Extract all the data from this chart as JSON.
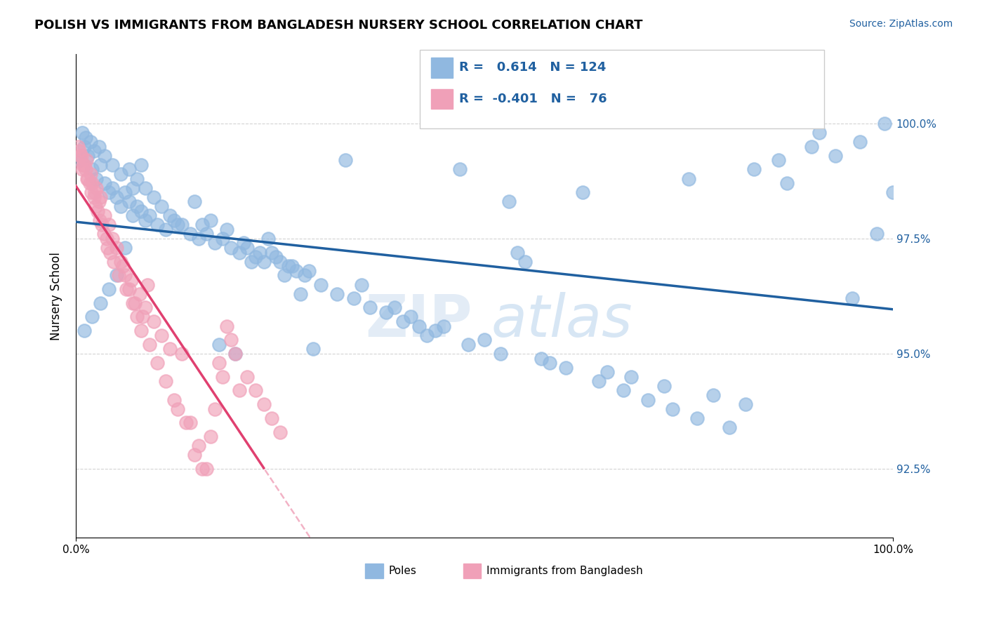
{
  "title": "POLISH VS IMMIGRANTS FROM BANGLADESH NURSERY SCHOOL CORRELATION CHART",
  "source": "Source: ZipAtlas.com",
  "ylabel": "Nursery School",
  "x_tick_labels": [
    "0.0%",
    "100.0%"
  ],
  "y_tick_values": [
    92.5,
    95.0,
    97.5,
    100.0
  ],
  "x_range": [
    0.0,
    100.0
  ],
  "y_range": [
    91.0,
    101.5
  ],
  "legend_blue_label": "Poles",
  "legend_pink_label": "Immigrants from Bangladesh",
  "r_blue": 0.614,
  "n_blue": 124,
  "r_pink": -0.401,
  "n_pink": 76,
  "blue_color": "#90b8e0",
  "pink_color": "#f0a0b8",
  "blue_line_color": "#2060a0",
  "pink_line_color": "#e04070",
  "blue_scatter_x": [
    0.5,
    1.0,
    1.5,
    2.0,
    2.5,
    3.0,
    3.5,
    4.0,
    4.5,
    5.0,
    5.5,
    6.0,
    6.5,
    7.0,
    7.5,
    8.0,
    8.5,
    9.0,
    10.0,
    11.0,
    12.0,
    13.0,
    14.0,
    15.0,
    16.0,
    17.0,
    18.0,
    19.0,
    20.0,
    21.0,
    22.0,
    23.0,
    24.0,
    25.0,
    26.0,
    27.0,
    28.0,
    30.0,
    32.0,
    34.0,
    36.0,
    38.0,
    40.0,
    42.0,
    44.0,
    48.0,
    52.0,
    55.0,
    58.0,
    62.0,
    65.0,
    68.0,
    72.0,
    75.0,
    78.0,
    82.0,
    86.0,
    90.0,
    93.0,
    96.0,
    99.0,
    35.0,
    39.0,
    41.0,
    43.0,
    10.5,
    11.5,
    12.5,
    9.5,
    8.5,
    7.5,
    6.5,
    5.5,
    4.5,
    3.5,
    2.8,
    2.2,
    1.8,
    1.2,
    0.8,
    14.5,
    16.5,
    18.5,
    20.5,
    22.5,
    24.5,
    26.5,
    28.5,
    45.0,
    50.0,
    54.0,
    57.0,
    60.0,
    64.0,
    67.0,
    70.0,
    73.0,
    76.0,
    80.0,
    83.0,
    87.0,
    91.0,
    95.0,
    98.0,
    100.0,
    53.0,
    47.0,
    33.0,
    29.0,
    15.5,
    8.0,
    7.0,
    6.0,
    5.0,
    4.0,
    3.0,
    2.0,
    1.0,
    17.5,
    19.5,
    21.5,
    23.5,
    25.5,
    27.5
  ],
  "blue_scatter_y": [
    99.2,
    99.5,
    99.3,
    99.0,
    98.8,
    99.1,
    98.7,
    98.5,
    98.6,
    98.4,
    98.2,
    98.5,
    98.3,
    98.0,
    98.2,
    98.1,
    97.9,
    98.0,
    97.8,
    97.7,
    97.9,
    97.8,
    97.6,
    97.5,
    97.6,
    97.4,
    97.5,
    97.3,
    97.2,
    97.3,
    97.1,
    97.0,
    97.2,
    97.0,
    96.9,
    96.8,
    96.7,
    96.5,
    96.3,
    96.2,
    96.0,
    95.9,
    95.7,
    95.6,
    95.5,
    95.2,
    95.0,
    97.0,
    94.8,
    98.5,
    94.6,
    94.5,
    94.3,
    98.8,
    94.1,
    93.9,
    99.2,
    99.5,
    99.3,
    99.6,
    100.0,
    96.5,
    96.0,
    95.8,
    95.4,
    98.2,
    98.0,
    97.8,
    98.4,
    98.6,
    98.8,
    99.0,
    98.9,
    99.1,
    99.3,
    99.5,
    99.4,
    99.6,
    99.7,
    99.8,
    98.3,
    97.9,
    97.7,
    97.4,
    97.2,
    97.1,
    96.9,
    96.8,
    95.6,
    95.3,
    97.2,
    94.9,
    94.7,
    94.4,
    94.2,
    94.0,
    93.8,
    93.6,
    93.4,
    99.0,
    98.7,
    99.8,
    96.2,
    97.6,
    98.5,
    98.3,
    99.0,
    99.2,
    95.1,
    97.8,
    99.1,
    98.6,
    97.3,
    96.7,
    96.4,
    96.1,
    95.8,
    95.5,
    95.2,
    95.0,
    97.0,
    97.5,
    96.7,
    96.3
  ],
  "pink_scatter_x": [
    0.3,
    0.5,
    0.8,
    1.0,
    1.3,
    1.5,
    1.8,
    2.0,
    2.3,
    2.5,
    2.8,
    3.0,
    3.5,
    4.0,
    4.5,
    5.0,
    5.5,
    6.0,
    6.5,
    7.0,
    7.5,
    8.0,
    9.0,
    10.0,
    11.0,
    12.0,
    13.0,
    14.0,
    15.0,
    16.0,
    17.0,
    18.0,
    19.0,
    20.0,
    4.2,
    3.8,
    3.2,
    2.7,
    2.2,
    1.7,
    1.2,
    0.7,
    5.8,
    6.8,
    7.8,
    8.5,
    9.5,
    10.5,
    11.5,
    0.4,
    0.9,
    1.4,
    1.9,
    2.4,
    2.9,
    3.4,
    3.9,
    4.6,
    5.2,
    6.2,
    7.2,
    8.2,
    12.5,
    13.5,
    14.5,
    15.5,
    16.5,
    17.5,
    18.5,
    19.5,
    21.0,
    22.0,
    23.0,
    24.0,
    25.0,
    8.8
  ],
  "pink_scatter_y": [
    99.5,
    99.3,
    99.0,
    99.1,
    99.2,
    98.8,
    98.9,
    98.7,
    98.5,
    98.6,
    98.3,
    98.4,
    98.0,
    97.8,
    97.5,
    97.3,
    97.0,
    96.7,
    96.4,
    96.1,
    95.8,
    95.5,
    95.2,
    94.8,
    94.4,
    94.0,
    95.0,
    93.5,
    93.0,
    92.5,
    93.8,
    94.5,
    95.3,
    94.2,
    97.2,
    97.5,
    97.8,
    98.1,
    98.4,
    98.7,
    99.0,
    99.3,
    96.9,
    96.6,
    96.3,
    96.0,
    95.7,
    95.4,
    95.1,
    99.4,
    99.1,
    98.8,
    98.5,
    98.2,
    97.9,
    97.6,
    97.3,
    97.0,
    96.7,
    96.4,
    96.1,
    95.8,
    93.8,
    93.5,
    92.8,
    92.5,
    93.2,
    94.8,
    95.6,
    95.0,
    94.5,
    94.2,
    93.9,
    93.6,
    93.3,
    96.5
  ]
}
